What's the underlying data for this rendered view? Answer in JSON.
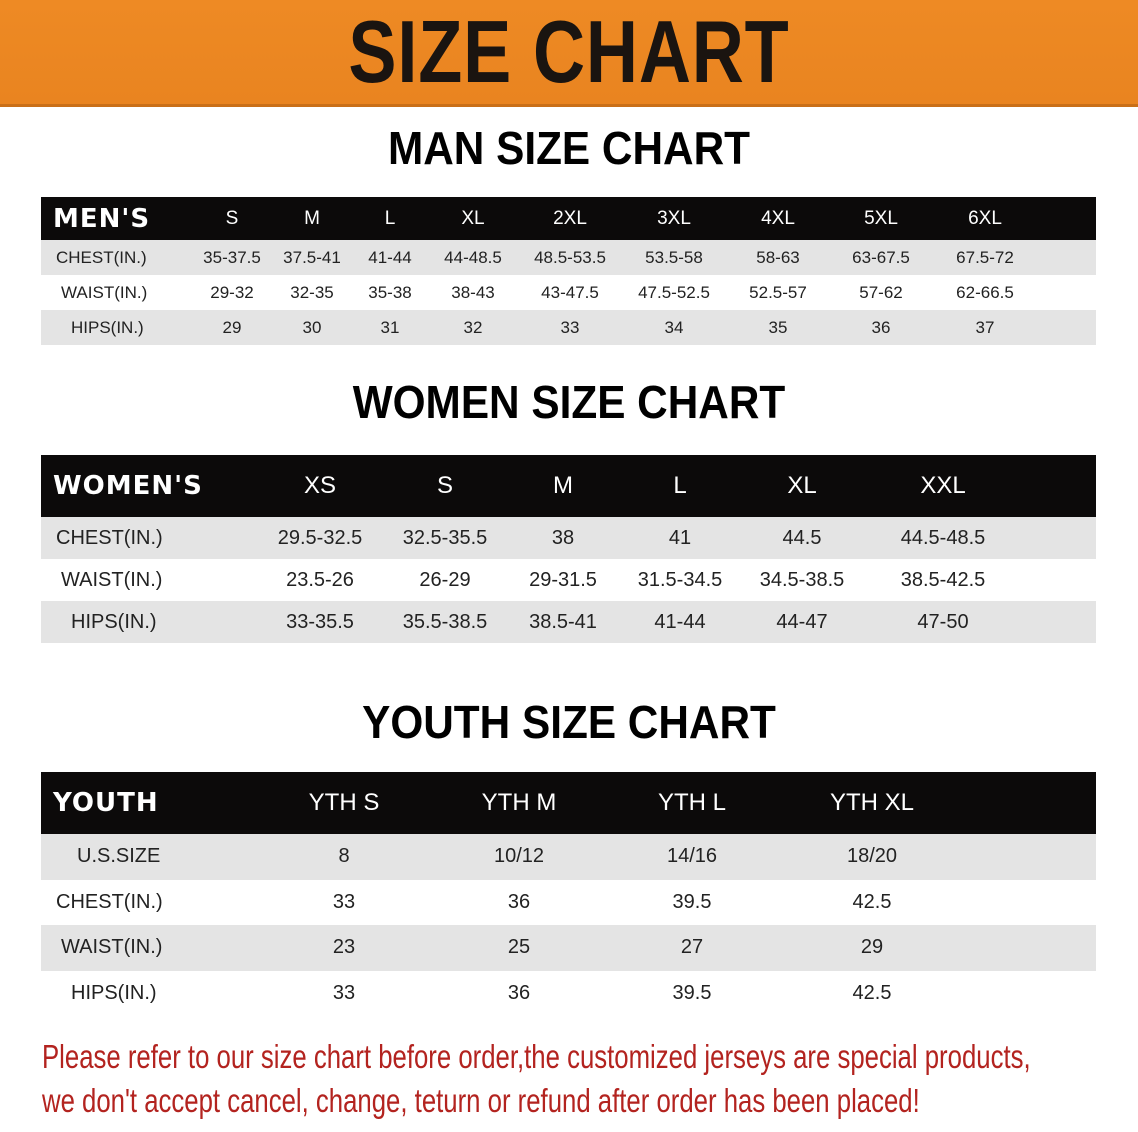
{
  "banner": {
    "title": "SIZE CHART",
    "color": "#ec8722"
  },
  "men": {
    "title": "MAN SIZE CHART",
    "header_label": "MEN'S",
    "sizes": [
      "S",
      "M",
      "L",
      "XL",
      "2XL",
      "3XL",
      "4XL",
      "5XL",
      "6XL"
    ],
    "rows": [
      {
        "label": "CHEST(IN.)",
        "values": [
          "35-37.5",
          "37.5-41",
          "41-44",
          "44-48.5",
          "48.5-53.5",
          "53.5-58",
          "58-63",
          "63-67.5",
          "67.5-72"
        ]
      },
      {
        "label": "WAIST(IN.)",
        "values": [
          "29-32",
          "32-35",
          "35-38",
          "38-43",
          "43-47.5",
          "47.5-52.5",
          "52.5-57",
          "57-62",
          "62-66.5"
        ]
      },
      {
        "label": "HIPS(IN.)",
        "values": [
          "29",
          "30",
          "31",
          "32",
          "33",
          "34",
          "35",
          "36",
          "37"
        ]
      }
    ]
  },
  "women": {
    "title": "WOMEN SIZE CHART",
    "header_label": "WOMEN'S",
    "sizes": [
      "XS",
      "S",
      "M",
      "L",
      "XL",
      "XXL"
    ],
    "rows": [
      {
        "label": "CHEST(IN.)",
        "values": [
          "29.5-32.5",
          "32.5-35.5",
          "38",
          "41",
          "44.5",
          "44.5-48.5"
        ]
      },
      {
        "label": "WAIST(IN.)",
        "values": [
          "23.5-26",
          "26-29",
          "29-31.5",
          "31.5-34.5",
          "34.5-38.5",
          "38.5-42.5"
        ]
      },
      {
        "label": "HIPS(IN.)",
        "values": [
          "33-35.5",
          "35.5-38.5",
          "38.5-41",
          "41-44",
          "44-47",
          "47-50"
        ]
      }
    ]
  },
  "youth": {
    "title": "YOUTH SIZE CHART",
    "header_label": "YOUTH",
    "sizes": [
      "YTH S",
      "YTH M",
      "YTH L",
      "YTH XL"
    ],
    "rows": [
      {
        "label": "U.S.SIZE",
        "values": [
          "8",
          "10/12",
          "14/16",
          "18/20"
        ]
      },
      {
        "label": "CHEST(IN.)",
        "values": [
          "33",
          "36",
          "39.5",
          "42.5"
        ]
      },
      {
        "label": "WAIST(IN.)",
        "values": [
          "23",
          "25",
          "27",
          "29"
        ]
      },
      {
        "label": "HIPS(IN.)",
        "values": [
          "33",
          "36",
          "39.5",
          "42.5"
        ]
      }
    ]
  },
  "footer": {
    "line1": "Please refer to our size chart before order,the customized jerseys are special products,",
    "line2": "we don't accept cancel, change, teturn or refund after order has been placed!",
    "color": "#b3231f"
  }
}
